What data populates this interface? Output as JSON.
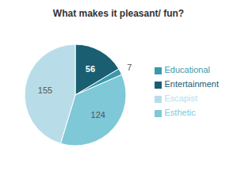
{
  "chart_data": {
    "type": "pie",
    "title": "What makes it pleasant/ fun?",
    "categories": [
      "Entertainment",
      "Educational",
      "Esthetic",
      "Escapist"
    ],
    "values": [
      56,
      7,
      124,
      155
    ],
    "colors": [
      "#1a5e72",
      "#3a9aab",
      "#7ec8d8",
      "#b8dde8"
    ],
    "data_labels": true,
    "legend": "right"
  }
}
